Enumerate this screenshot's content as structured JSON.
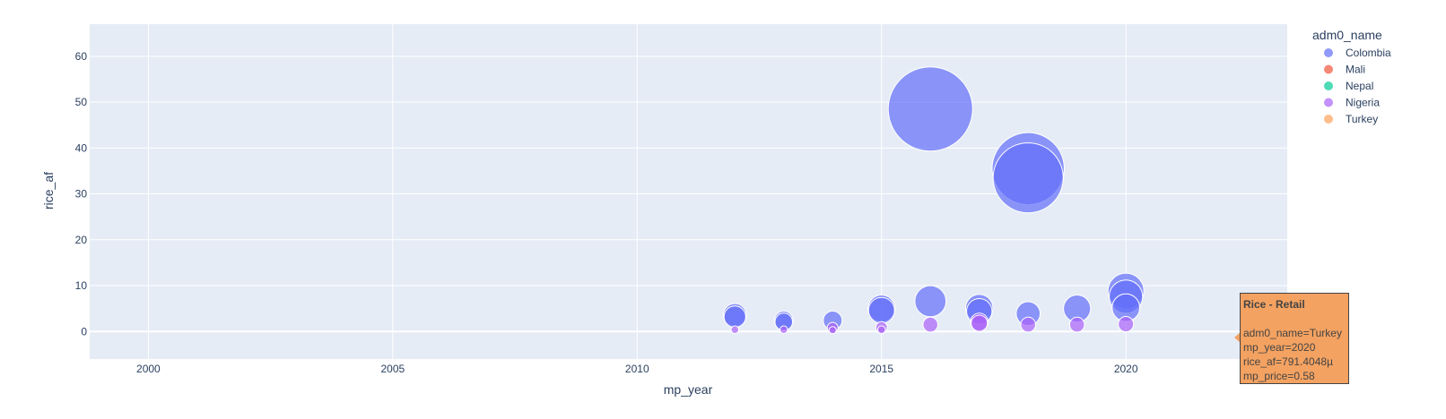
{
  "chart_data": {
    "type": "scatter",
    "xlabel": "mp_year",
    "ylabel": "rice_af",
    "xlim": [
      1998.8,
      2023.3
    ],
    "ylim": [
      -6,
      67
    ],
    "xticks": [
      2000,
      2005,
      2010,
      2015,
      2020
    ],
    "yticks": [
      0,
      10,
      20,
      30,
      40,
      50,
      60
    ],
    "grid": true,
    "legend": {
      "title": "adm0_name",
      "placement": "right"
    },
    "series": [
      {
        "name": "Colombia",
        "color": "#636efa",
        "points": [
          {
            "x": 2012,
            "y": 3.6,
            "size": 3.6
          },
          {
            "x": 2012,
            "y": 3.2,
            "size": 3.2
          },
          {
            "x": 2013,
            "y": 2.4,
            "size": 2.4
          },
          {
            "x": 2013,
            "y": 2.1,
            "size": 2.1
          },
          {
            "x": 2014,
            "y": 2.4,
            "size": 2.4
          },
          {
            "x": 2015,
            "y": 5.0,
            "size": 5.0
          },
          {
            "x": 2015,
            "y": 4.6,
            "size": 4.6
          },
          {
            "x": 2016,
            "y": 48.5,
            "size": 48.5
          },
          {
            "x": 2016,
            "y": 6.6,
            "size": 6.6
          },
          {
            "x": 2017,
            "y": 5.1,
            "size": 5.1
          },
          {
            "x": 2017,
            "y": 4.4,
            "size": 4.4
          },
          {
            "x": 2018,
            "y": 35.5,
            "size": 35.5
          },
          {
            "x": 2018,
            "y": 33.5,
            "size": 33.5
          },
          {
            "x": 2018,
            "y": 3.9,
            "size": 3.9
          },
          {
            "x": 2019,
            "y": 5.0,
            "size": 5.0
          },
          {
            "x": 2020,
            "y": 8.8,
            "size": 8.8
          },
          {
            "x": 2020,
            "y": 7.6,
            "size": 7.6
          },
          {
            "x": 2020,
            "y": 5.2,
            "size": 5.2
          }
        ]
      },
      {
        "name": "Mali",
        "color": "#ef553b",
        "points": []
      },
      {
        "name": "Nepal",
        "color": "#00cc96",
        "points": []
      },
      {
        "name": "Nigeria",
        "color": "#ab63fa",
        "points": [
          {
            "x": 2012,
            "y": 0.4,
            "size": 0.4
          },
          {
            "x": 2013,
            "y": 0.4,
            "size": 0.4
          },
          {
            "x": 2014,
            "y": 0.3,
            "size": 0.3
          },
          {
            "x": 2014,
            "y": 0.8,
            "size": 0.8
          },
          {
            "x": 2015,
            "y": 0.4,
            "size": 0.4
          },
          {
            "x": 2015,
            "y": 0.9,
            "size": 0.9
          },
          {
            "x": 2016,
            "y": 1.5,
            "size": 1.5
          },
          {
            "x": 2017,
            "y": 1.8,
            "size": 1.8
          },
          {
            "x": 2017,
            "y": 2.1,
            "size": 2.1
          },
          {
            "x": 2018,
            "y": 1.5,
            "size": 1.5
          },
          {
            "x": 2019,
            "y": 1.5,
            "size": 1.5
          },
          {
            "x": 2020,
            "y": 1.6,
            "size": 1.6
          }
        ]
      },
      {
        "name": "Turkey",
        "color": "#ffa15a",
        "points": []
      }
    ]
  },
  "tooltip": {
    "title": "Rice - Retail",
    "lines": [
      "adm0_name=Turkey",
      "mp_year=2020",
      "rice_af=791.4048µ",
      "mp_price=0.58"
    ]
  }
}
